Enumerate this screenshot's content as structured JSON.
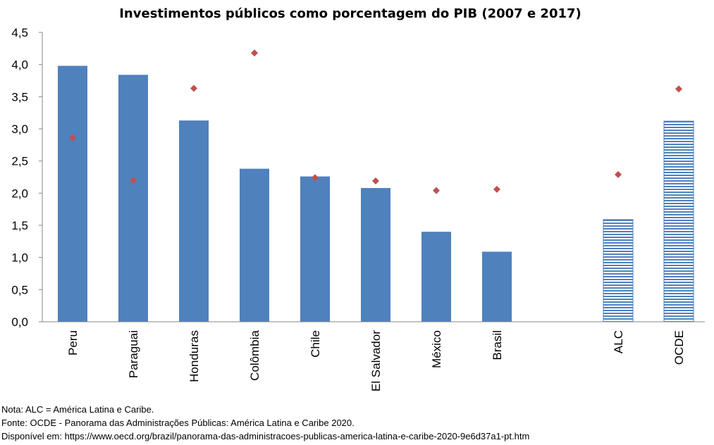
{
  "chart_data": {
    "type": "bar",
    "title": "Investimentos públicos como porcentagem do PIB (2007 e 2017)",
    "categories": [
      "Peru",
      "Paraguai",
      "Honduras",
      "Colômbia",
      "Chile",
      "El Salvador",
      "México",
      "Brasil",
      "ALC",
      "OCDE"
    ],
    "series": [
      {
        "name": "2017",
        "type": "bar",
        "color": "#4f81bd",
        "values": [
          3.98,
          3.84,
          3.13,
          2.38,
          2.26,
          2.08,
          1.4,
          1.09,
          1.59,
          3.12
        ],
        "hatched_categories": [
          "ALC",
          "OCDE"
        ]
      },
      {
        "name": "2007",
        "type": "scatter",
        "marker": "diamond",
        "color": "#c0504d",
        "values": [
          2.86,
          2.2,
          3.63,
          4.18,
          2.24,
          2.19,
          2.04,
          2.06,
          2.29,
          3.62
        ]
      }
    ],
    "ylim": [
      0,
      4.5
    ],
    "yticks": [
      "0,0",
      "0,5",
      "1,0",
      "1,5",
      "2,0",
      "2,5",
      "3,0",
      "3,5",
      "4,0",
      "4,5"
    ],
    "xlabel": "",
    "ylabel": "",
    "grid": false,
    "legend": "bottom-right"
  },
  "notes": {
    "nota": "Nota: ALC = América Latina e Caribe.",
    "fonte": "Fonte: OCDE - Panorama das Administrações Públicas: América Latina e Caribe 2020.",
    "disponivel": "Disponível em: https://www.oecd.org/brazil/panorama-das-administracoes-publicas-america-latina-e-caribe-2020-9e6d37a1-pt.htm"
  }
}
